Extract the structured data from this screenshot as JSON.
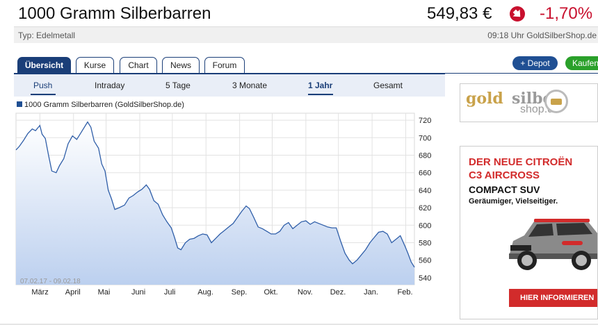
{
  "header": {
    "title": "1000 Gramm Silberbarren",
    "price": "549,83 €",
    "change": "-1,70%",
    "change_icon": "down-arrow-circle-icon",
    "type_label": "Typ: Edelmetall",
    "source_label": "09:18 Uhr GoldSilberShop.de"
  },
  "tabs": [
    {
      "label": "Übersicht",
      "active": true
    },
    {
      "label": "Kurse",
      "active": false
    },
    {
      "label": "Chart",
      "active": false
    },
    {
      "label": "News",
      "active": false
    },
    {
      "label": "Forum",
      "active": false
    }
  ],
  "actions": {
    "depot_label": "+ Depot",
    "buy_label": "Kaufen"
  },
  "ranges": [
    {
      "label": "Push",
      "active": false
    },
    {
      "label": "Intraday",
      "active": false
    },
    {
      "label": "5 Tage",
      "active": false
    },
    {
      "label": "3 Monate",
      "active": false
    },
    {
      "label": "1 Jahr",
      "active": true
    },
    {
      "label": "Gesamt",
      "active": false
    }
  ],
  "chart_data": {
    "type": "area",
    "legend": "1000 Gramm Silberbarren (GoldSilberShop.de)",
    "date_range_label": "07.02.17 - 09.02.18",
    "x_labels": [
      "März",
      "April",
      "Mai",
      "Juni",
      "Juli",
      "Aug.",
      "Sep.",
      "Okt.",
      "Nov.",
      "Dez.",
      "Jan.",
      "Feb."
    ],
    "x_start": "2017-02-07",
    "x_end": "2018-02-09",
    "y_ticks": [
      540,
      560,
      580,
      600,
      620,
      640,
      660,
      680,
      700,
      720
    ],
    "ylim": [
      532,
      728
    ],
    "grid": true,
    "line_color": "#2f5ea8",
    "fill_top_color": "#ffffff",
    "fill_bottom_color": "#bcd0ef",
    "points": [
      [
        "2017-02-07",
        686
      ],
      [
        "2017-02-10",
        690
      ],
      [
        "2017-02-14",
        697
      ],
      [
        "2017-02-18",
        705
      ],
      [
        "2017-02-22",
        710
      ],
      [
        "2017-02-25",
        708
      ],
      [
        "2017-03-01",
        714
      ],
      [
        "2017-03-03",
        704
      ],
      [
        "2017-03-06",
        699
      ],
      [
        "2017-03-09",
        680
      ],
      [
        "2017-03-12",
        662
      ],
      [
        "2017-03-16",
        660
      ],
      [
        "2017-03-19",
        668
      ],
      [
        "2017-03-23",
        676
      ],
      [
        "2017-03-27",
        693
      ],
      [
        "2017-03-31",
        702
      ],
      [
        "2017-04-04",
        698
      ],
      [
        "2017-04-08",
        706
      ],
      [
        "2017-04-12",
        714
      ],
      [
        "2017-04-14",
        718
      ],
      [
        "2017-04-17",
        712
      ],
      [
        "2017-04-20",
        696
      ],
      [
        "2017-04-24",
        688
      ],
      [
        "2017-04-27",
        670
      ],
      [
        "2017-04-30",
        662
      ],
      [
        "2017-05-03",
        640
      ],
      [
        "2017-05-06",
        630
      ],
      [
        "2017-05-09",
        618
      ],
      [
        "2017-05-13",
        620
      ],
      [
        "2017-05-18",
        623
      ],
      [
        "2017-05-22",
        631
      ],
      [
        "2017-05-26",
        634
      ],
      [
        "2017-05-30",
        638
      ],
      [
        "2017-06-03",
        641
      ],
      [
        "2017-06-07",
        646
      ],
      [
        "2017-06-10",
        641
      ],
      [
        "2017-06-14",
        628
      ],
      [
        "2017-06-18",
        624
      ],
      [
        "2017-06-22",
        612
      ],
      [
        "2017-06-26",
        604
      ],
      [
        "2017-06-30",
        597
      ],
      [
        "2017-07-03",
        586
      ],
      [
        "2017-07-06",
        574
      ],
      [
        "2017-07-09",
        572
      ],
      [
        "2017-07-13",
        580
      ],
      [
        "2017-07-17",
        584
      ],
      [
        "2017-07-21",
        585
      ],
      [
        "2017-07-25",
        588
      ],
      [
        "2017-07-29",
        590
      ],
      [
        "2017-08-02",
        589
      ],
      [
        "2017-08-06",
        580
      ],
      [
        "2017-08-10",
        585
      ],
      [
        "2017-08-14",
        590
      ],
      [
        "2017-08-18",
        594
      ],
      [
        "2017-08-22",
        598
      ],
      [
        "2017-08-26",
        602
      ],
      [
        "2017-08-30",
        609
      ],
      [
        "2017-09-03",
        616
      ],
      [
        "2017-09-07",
        622
      ],
      [
        "2017-09-10",
        619
      ],
      [
        "2017-09-14",
        609
      ],
      [
        "2017-09-18",
        598
      ],
      [
        "2017-09-22",
        596
      ],
      [
        "2017-09-26",
        593
      ],
      [
        "2017-09-30",
        590
      ],
      [
        "2017-10-04",
        590
      ],
      [
        "2017-10-08",
        593
      ],
      [
        "2017-10-12",
        600
      ],
      [
        "2017-10-16",
        603
      ],
      [
        "2017-10-20",
        596
      ],
      [
        "2017-10-24",
        600
      ],
      [
        "2017-10-28",
        604
      ],
      [
        "2017-11-01",
        605
      ],
      [
        "2017-11-05",
        601
      ],
      [
        "2017-11-09",
        604
      ],
      [
        "2017-11-13",
        602
      ],
      [
        "2017-11-17",
        600
      ],
      [
        "2017-11-21",
        598
      ],
      [
        "2017-11-25",
        597
      ],
      [
        "2017-11-29",
        597
      ],
      [
        "2017-12-03",
        582
      ],
      [
        "2017-12-07",
        568
      ],
      [
        "2017-12-11",
        560
      ],
      [
        "2017-12-14",
        556
      ],
      [
        "2017-12-18",
        560
      ],
      [
        "2017-12-22",
        566
      ],
      [
        "2017-12-26",
        572
      ],
      [
        "2017-12-30",
        580
      ],
      [
        "2018-01-03",
        586
      ],
      [
        "2018-01-07",
        592
      ],
      [
        "2018-01-11",
        593
      ],
      [
        "2018-01-15",
        590
      ],
      [
        "2018-01-19",
        580
      ],
      [
        "2018-01-23",
        584
      ],
      [
        "2018-01-27",
        588
      ],
      [
        "2018-01-31",
        577
      ],
      [
        "2018-02-03",
        568
      ],
      [
        "2018-02-06",
        558
      ],
      [
        "2018-02-09",
        552
      ]
    ]
  },
  "ads": {
    "logo_gold": "gold",
    "logo_silber": "silber",
    "logo_shop": "shop.de",
    "headline_1": "DER NEUE CITROËN",
    "headline_2": "C3 AIRCROSS",
    "subline": "COMPACT SUV",
    "tagline": "Geräumiger, Vielseitiger.",
    "cta": "HIER INFORMIEREN"
  }
}
